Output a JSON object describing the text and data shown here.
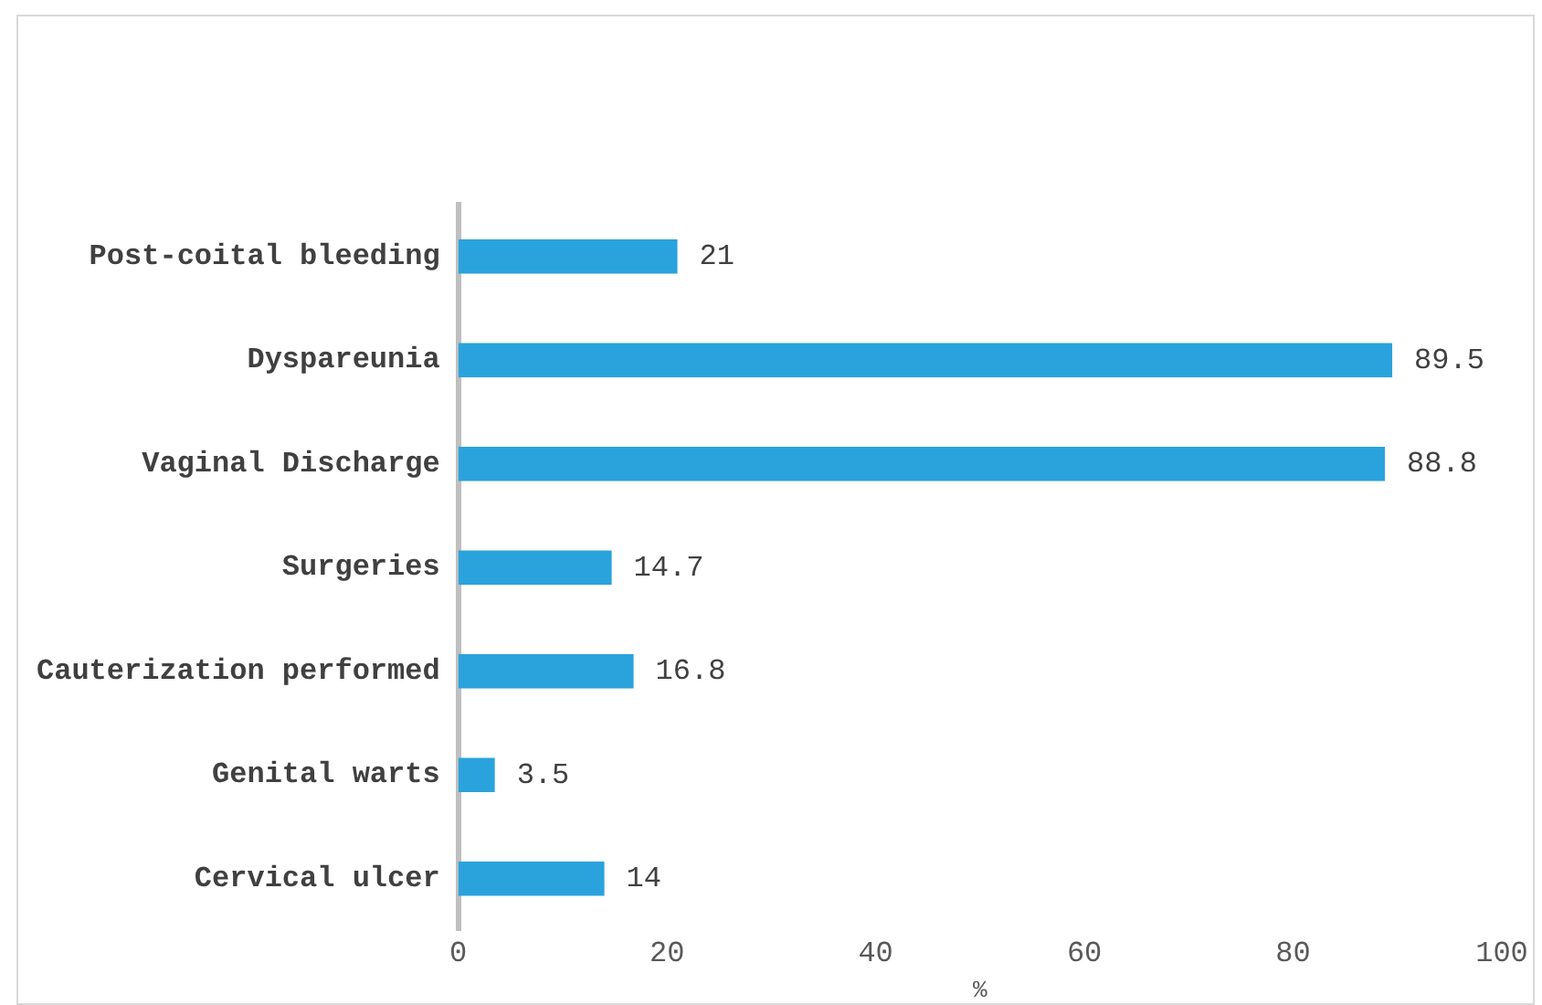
{
  "chart_data": {
    "type": "bar",
    "orientation": "horizontal",
    "categories": [
      "Post-coital bleeding",
      "Dyspareunia",
      "Vaginal Discharge",
      "Surgeries",
      "Cauterization performed",
      "Genital warts",
      "Cervical ulcer"
    ],
    "values": [
      21,
      89.5,
      88.8,
      14.7,
      16.8,
      3.5,
      14
    ],
    "color": "#2aa3dc",
    "xlabel": "%",
    "xlim": [
      0,
      100
    ],
    "xticks": [
      0,
      20,
      40,
      60,
      80,
      100
    ],
    "grid": false,
    "legend": false,
    "data_labels": true
  }
}
